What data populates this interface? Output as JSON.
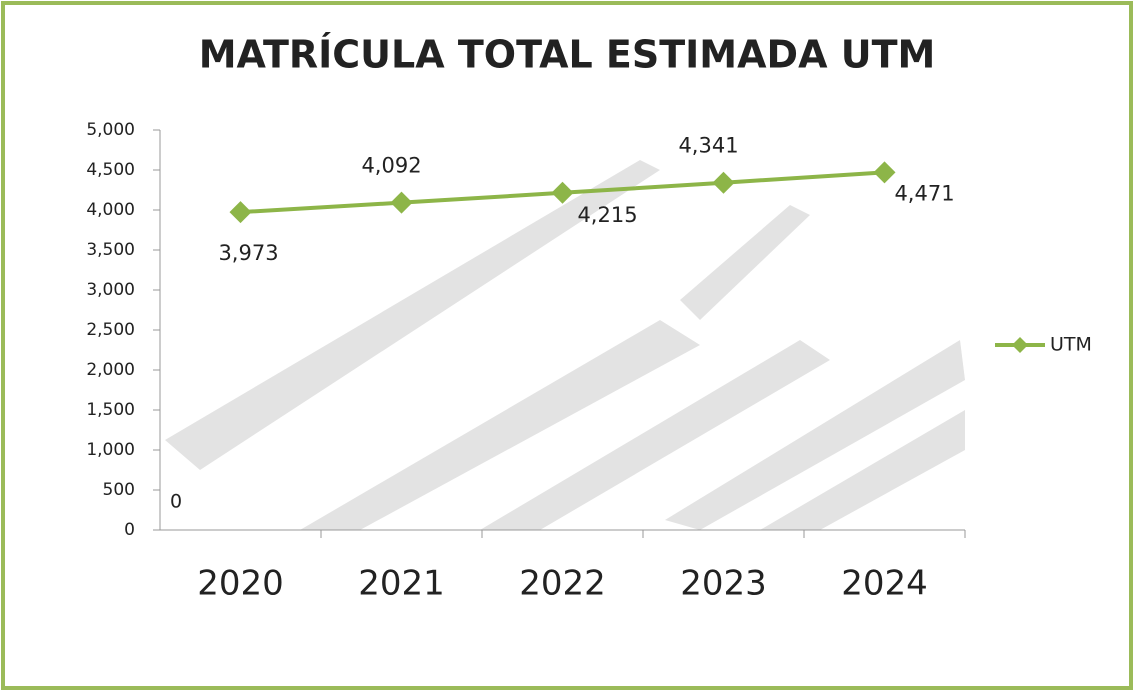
{
  "chart_data": {
    "type": "line",
    "title": "MATRÍCULA TOTAL ESTIMADA UTM",
    "categories": [
      "2020",
      "2021",
      "2022",
      "2023",
      "2024"
    ],
    "series": [
      {
        "name": "UTM",
        "color": "#8db548",
        "values": [
          3973,
          4092,
          4215,
          4341,
          4471
        ],
        "value_labels": [
          "3,973",
          "4,092",
          "4,215",
          "4,341",
          "4,471"
        ]
      }
    ],
    "ylim": [
      0,
      5000
    ],
    "yticks": [
      0,
      500,
      {
        "value": 1000,
        "label": "1,000"
      },
      {
        "value": 1500,
        "label": "1,500"
      },
      {
        "value": 2000,
        "label": "2,000"
      },
      {
        "value": 2500,
        "label": "2,500"
      },
      {
        "value": 3000,
        "label": "3,000"
      },
      {
        "value": 3500,
        "label": "3,500"
      },
      {
        "value": 4000,
        "label": "4,000"
      },
      {
        "value": 4500,
        "label": "4,500"
      },
      {
        "value": 5000,
        "label": "5,000"
      }
    ],
    "annotations": [
      "0"
    ],
    "legend": "right"
  }
}
